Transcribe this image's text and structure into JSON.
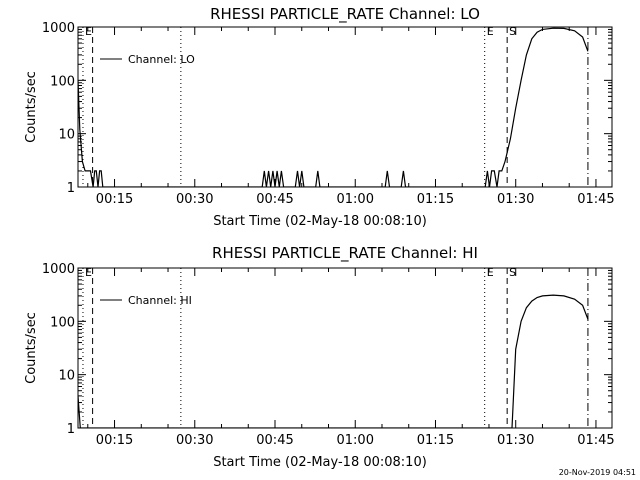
{
  "footer": {
    "timestamp": "20-Nov-2019 04:51"
  },
  "chart_data": [
    {
      "type": "line",
      "title": "RHESSI PARTICLE_RATE Channel: LO",
      "xlabel": "Start Time (02-May-18 00:08:10)",
      "ylabel": "Counts/sec",
      "yscale": "log",
      "ylim": [
        1,
        1000
      ],
      "xlim_minutes": [
        8.17,
        108
      ],
      "x_tick_minutes": [
        15,
        30,
        45,
        60,
        75,
        90,
        105
      ],
      "x_tick_labels": [
        "00:15",
        "00:30",
        "00:45",
        "01:00",
        "01:15",
        "01:30",
        "01:45"
      ],
      "y_ticks": [
        1,
        10,
        100,
        1000
      ],
      "y_tick_labels": [
        "1",
        "10",
        "100",
        "1000"
      ],
      "legend": {
        "label": "Channel: LO",
        "placement": "top-left"
      },
      "markers": [
        {
          "minute": 9.1,
          "label": "E",
          "style": "dotted"
        },
        {
          "minute": 10.9,
          "label": "",
          "style": "dashed"
        },
        {
          "minute": 27.4,
          "label": "",
          "style": "dotted"
        },
        {
          "minute": 84.2,
          "label": "E",
          "style": "dotted"
        },
        {
          "minute": 88.4,
          "label": "S",
          "style": "dashed"
        },
        {
          "minute": 103.5,
          "label": "",
          "style": "dashdot"
        }
      ],
      "series": [
        {
          "name": "Channel: LO",
          "points": [
            [
              8.17,
              100
            ],
            [
              8.5,
              12
            ],
            [
              9.0,
              3
            ],
            [
              9.5,
              2
            ],
            [
              10.5,
              2
            ],
            [
              11.0,
              1
            ],
            [
              11.3,
              2
            ],
            [
              11.6,
              2
            ],
            [
              11.9,
              1
            ],
            [
              12.2,
              2
            ],
            [
              12.5,
              2
            ],
            [
              12.8,
              1
            ],
            [
              42.6,
              1
            ],
            [
              43.0,
              2
            ],
            [
              43.4,
              1
            ],
            [
              43.8,
              2
            ],
            [
              44.2,
              1
            ],
            [
              44.6,
              2
            ],
            [
              45.0,
              1
            ],
            [
              45.4,
              2
            ],
            [
              45.8,
              1
            ],
            [
              46.2,
              2
            ],
            [
              46.6,
              1
            ],
            [
              48.8,
              1
            ],
            [
              49.2,
              2
            ],
            [
              49.6,
              1
            ],
            [
              50.0,
              2
            ],
            [
              50.4,
              1
            ],
            [
              52.6,
              1
            ],
            [
              53.0,
              2
            ],
            [
              53.4,
              1
            ],
            [
              65.6,
              1
            ],
            [
              66.0,
              2
            ],
            [
              66.4,
              1
            ],
            [
              68.6,
              1
            ],
            [
              69.0,
              2
            ],
            [
              69.4,
              1
            ],
            [
              84.3,
              1
            ],
            [
              84.7,
              2
            ],
            [
              85.1,
              1
            ],
            [
              85.5,
              2
            ],
            [
              86.0,
              2
            ],
            [
              86.5,
              1
            ],
            [
              86.9,
              2
            ],
            [
              87.4,
              2
            ],
            [
              88.0,
              3
            ],
            [
              89.0,
              8
            ],
            [
              90.0,
              30
            ],
            [
              91.0,
              100
            ],
            [
              92.0,
              300
            ],
            [
              93.0,
              600
            ],
            [
              94.0,
              800
            ],
            [
              95.0,
              900
            ],
            [
              97.0,
              950
            ],
            [
              99.0,
              940
            ],
            [
              101.0,
              850
            ],
            [
              102.5,
              650
            ],
            [
              103.5,
              350
            ]
          ]
        }
      ]
    },
    {
      "type": "line",
      "title": "RHESSI PARTICLE_RATE Channel: HI",
      "xlabel": "Start Time (02-May-18 00:08:10)",
      "ylabel": "Counts/sec",
      "yscale": "log",
      "ylim": [
        1,
        1000
      ],
      "xlim_minutes": [
        8.17,
        108
      ],
      "x_tick_minutes": [
        15,
        30,
        45,
        60,
        75,
        90,
        105
      ],
      "x_tick_labels": [
        "00:15",
        "00:30",
        "00:45",
        "01:00",
        "01:15",
        "01:30",
        "01:45"
      ],
      "y_ticks": [
        1,
        10,
        100,
        1000
      ],
      "y_tick_labels": [
        "1",
        "10",
        "100",
        "1000"
      ],
      "legend": {
        "label": "Channel: HI",
        "placement": "top-left"
      },
      "markers": [
        {
          "minute": 9.1,
          "label": "E",
          "style": "dotted"
        },
        {
          "minute": 10.9,
          "label": "",
          "style": "dashed"
        },
        {
          "minute": 27.4,
          "label": "",
          "style": "dotted"
        },
        {
          "minute": 84.2,
          "label": "E",
          "style": "dotted"
        },
        {
          "minute": 88.4,
          "label": "S",
          "style": "dashed"
        },
        {
          "minute": 103.5,
          "label": "",
          "style": "dashdot"
        }
      ],
      "series": [
        {
          "name": "Channel: HI",
          "points": [
            [
              8.17,
              4
            ],
            [
              8.6,
              1
            ],
            [
              89.3,
              1
            ],
            [
              90.0,
              30
            ],
            [
              91.0,
              100
            ],
            [
              92.0,
              180
            ],
            [
              93.0,
              240
            ],
            [
              94.0,
              280
            ],
            [
              95.0,
              300
            ],
            [
              97.0,
              310
            ],
            [
              99.0,
              300
            ],
            [
              101.0,
              260
            ],
            [
              102.5,
              200
            ],
            [
              103.5,
              110
            ]
          ]
        }
      ]
    }
  ]
}
